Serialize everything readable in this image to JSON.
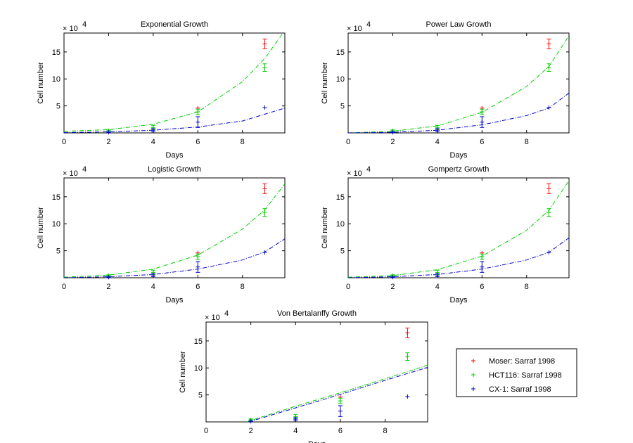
{
  "chart_data": [
    {
      "type": "scatter",
      "title": "Exponential Growth",
      "xlabel": "Days",
      "ylabel": "Cell number",
      "y_exponent_label": "× 10",
      "y_exponent_power": "4",
      "xlim": [
        0,
        9.9
      ],
      "ylim": [
        0,
        18.5
      ],
      "xticks": [
        0,
        2,
        4,
        6,
        8
      ],
      "yticks": [
        5,
        10,
        15
      ],
      "series": [
        {
          "name": "Moser: Sarraf 1998",
          "color": "#ff0000",
          "x": [
            6,
            9
          ],
          "y": [
            4.6,
            16.5
          ],
          "err": [
            0,
            0.9
          ]
        },
        {
          "name": "HCT116: Sarraf 1998",
          "color": "#00cc00",
          "x": [
            2,
            4,
            6,
            9
          ],
          "y": [
            0.4,
            1.0,
            3.9,
            12.1
          ],
          "err": [
            0.15,
            0.4,
            0.5,
            0.7
          ]
        },
        {
          "name": "CX-1: Sarraf 1998",
          "color": "#0000cc",
          "x": [
            2,
            4,
            6,
            9
          ],
          "y": [
            0.1,
            0.5,
            2.0,
            4.7
          ],
          "err": [
            0.05,
            0.3,
            1.0,
            0
          ]
        }
      ],
      "fits": [
        {
          "color": "#00cc00",
          "x": [
            0,
            2,
            4,
            6,
            8,
            9,
            9.9
          ],
          "y": [
            0.3,
            0.6,
            1.6,
            3.9,
            9.5,
            13.8,
            19.0
          ]
        },
        {
          "color": "#0000cc",
          "x": [
            0,
            2,
            4,
            6,
            8,
            9.9
          ],
          "y": [
            0.05,
            0.2,
            0.5,
            1.1,
            2.2,
            4.6
          ]
        }
      ]
    },
    {
      "type": "scatter",
      "title": "Power Law Growth",
      "xlabel": "Days",
      "ylabel": "Cell number",
      "y_exponent_label": "× 10",
      "y_exponent_power": "4",
      "xlim": [
        0,
        9.9
      ],
      "ylim": [
        0,
        18.5
      ],
      "xticks": [
        0,
        2,
        4,
        6,
        8
      ],
      "yticks": [
        5,
        10,
        15
      ],
      "series": [
        {
          "name": "Moser: Sarraf 1998",
          "color": "#ff0000",
          "x": [
            6,
            9
          ],
          "y": [
            4.6,
            16.5
          ],
          "err": [
            0,
            0.9
          ]
        },
        {
          "name": "HCT116: Sarraf 1998",
          "color": "#00cc00",
          "x": [
            2,
            4,
            6,
            9
          ],
          "y": [
            0.4,
            1.0,
            3.9,
            12.1
          ],
          "err": [
            0.15,
            0.4,
            0.5,
            0.7
          ]
        },
        {
          "name": "CX-1: Sarraf 1998",
          "color": "#0000cc",
          "x": [
            2,
            4,
            6,
            9
          ],
          "y": [
            0.1,
            0.5,
            2.0,
            4.7
          ],
          "err": [
            0.05,
            0.3,
            1.0,
            0
          ]
        }
      ],
      "fits": [
        {
          "color": "#00cc00",
          "x": [
            0,
            2,
            4,
            6,
            8,
            9,
            9.9
          ],
          "y": [
            0.0,
            0.3,
            1.3,
            3.8,
            8.6,
            12.3,
            18.0
          ]
        },
        {
          "color": "#0000cc",
          "x": [
            0,
            2,
            4,
            6,
            8,
            9,
            9.9
          ],
          "y": [
            0.0,
            0.1,
            0.5,
            1.5,
            3.2,
            4.6,
            7.4
          ]
        }
      ]
    },
    {
      "type": "scatter",
      "title": "Logistic Growth",
      "xlabel": "Days",
      "ylabel": "Cell number",
      "y_exponent_label": "× 10",
      "y_exponent_power": "4",
      "xlim": [
        0,
        9.9
      ],
      "ylim": [
        0,
        18.5
      ],
      "xticks": [
        0,
        2,
        4,
        6,
        8
      ],
      "yticks": [
        5,
        10,
        15
      ],
      "series": [
        {
          "name": "Moser: Sarraf 1998",
          "color": "#ff0000",
          "x": [
            6,
            9
          ],
          "y": [
            4.6,
            16.5
          ],
          "err": [
            0,
            0.9
          ]
        },
        {
          "name": "HCT116: Sarraf 1998",
          "color": "#00cc00",
          "x": [
            2,
            4,
            6,
            9
          ],
          "y": [
            0.4,
            1.0,
            3.9,
            12.1
          ],
          "err": [
            0.15,
            0.4,
            0.5,
            0.7
          ]
        },
        {
          "name": "CX-1: Sarraf 1998",
          "color": "#0000cc",
          "x": [
            2,
            4,
            6,
            9
          ],
          "y": [
            0.1,
            0.5,
            2.0,
            4.7
          ],
          "err": [
            0.05,
            0.3,
            1.0,
            0
          ]
        }
      ],
      "fits": [
        {
          "color": "#00cc00",
          "x": [
            0,
            2,
            4,
            6,
            8,
            9,
            9.9
          ],
          "y": [
            0.1,
            0.5,
            1.6,
            4.2,
            9.0,
            12.6,
            17.4
          ]
        },
        {
          "color": "#0000cc",
          "x": [
            0,
            2,
            4,
            6,
            8,
            9,
            9.9
          ],
          "y": [
            0.0,
            0.2,
            0.6,
            1.6,
            3.3,
            4.8,
            7.2
          ]
        }
      ]
    },
    {
      "type": "scatter",
      "title": "Gompertz Growth",
      "xlabel": "Days",
      "ylabel": "Cell number",
      "y_exponent_label": "× 10",
      "y_exponent_power": "4",
      "xlim": [
        0,
        9.9
      ],
      "ylim": [
        0,
        18.5
      ],
      "xticks": [
        0,
        2,
        4,
        6,
        8
      ],
      "yticks": [
        5,
        10,
        15
      ],
      "series": [
        {
          "name": "Moser: Sarraf 1998",
          "color": "#ff0000",
          "x": [
            6,
            9
          ],
          "y": [
            4.6,
            16.5
          ],
          "err": [
            0,
            0.9
          ]
        },
        {
          "name": "HCT116: Sarraf 1998",
          "color": "#00cc00",
          "x": [
            2,
            4,
            6,
            9
          ],
          "y": [
            0.4,
            1.0,
            3.9,
            12.1
          ],
          "err": [
            0.15,
            0.4,
            0.5,
            0.7
          ]
        },
        {
          "name": "CX-1: Sarraf 1998",
          "color": "#0000cc",
          "x": [
            2,
            4,
            6,
            9
          ],
          "y": [
            0.1,
            0.5,
            2.0,
            4.7
          ],
          "err": [
            0.05,
            0.3,
            1.0,
            0
          ]
        }
      ],
      "fits": [
        {
          "color": "#00cc00",
          "x": [
            0,
            2,
            4,
            6,
            8,
            9,
            9.9
          ],
          "y": [
            0.1,
            0.4,
            1.5,
            4.0,
            8.8,
            12.5,
            18.0
          ]
        },
        {
          "color": "#0000cc",
          "x": [
            0,
            2,
            4,
            6,
            8,
            9,
            9.9
          ],
          "y": [
            0.0,
            0.2,
            0.6,
            1.6,
            3.3,
            4.7,
            7.4
          ]
        }
      ]
    },
    {
      "type": "scatter",
      "title": "Von Bertalanffy Growth",
      "xlabel": "Days",
      "ylabel": "Cell number",
      "y_exponent_label": "× 10",
      "y_exponent_power": "4",
      "xlim": [
        0,
        9.9
      ],
      "ylim": [
        0,
        18.5
      ],
      "xticks": [
        0,
        2,
        4,
        6,
        8
      ],
      "yticks": [
        5,
        10,
        15
      ],
      "series": [
        {
          "name": "Moser: Sarraf 1998",
          "color": "#ff0000",
          "x": [
            6,
            9
          ],
          "y": [
            4.6,
            16.5
          ],
          "err": [
            0,
            0.9
          ]
        },
        {
          "name": "HCT116: Sarraf 1998",
          "color": "#00cc00",
          "x": [
            2,
            4,
            6,
            9
          ],
          "y": [
            0.4,
            1.0,
            3.9,
            12.1
          ],
          "err": [
            0.15,
            0.4,
            0.5,
            0.7
          ]
        },
        {
          "name": "CX-1: Sarraf 1998",
          "color": "#0000cc",
          "x": [
            2,
            4,
            6,
            9
          ],
          "y": [
            0.1,
            0.5,
            2.0,
            4.7
          ],
          "err": [
            0.05,
            0.3,
            1.0,
            0
          ]
        }
      ],
      "fits": [
        {
          "color": "#00cc00",
          "x": [
            1.8,
            4,
            6,
            8,
            9.9
          ],
          "y": [
            0.0,
            2.9,
            5.4,
            8.0,
            10.5
          ]
        },
        {
          "color": "#0000cc",
          "x": [
            1.9,
            4,
            6,
            8,
            9.9
          ],
          "y": [
            0.0,
            2.6,
            5.1,
            7.7,
            10.1
          ]
        }
      ]
    }
  ],
  "legend": {
    "placement": "right of bottom plot",
    "entries": [
      {
        "label": "Moser: Sarraf 1998",
        "color": "#ff0000"
      },
      {
        "label": "HCT116: Sarraf 1998",
        "color": "#00cc00"
      },
      {
        "label": "CX-1: Sarraf 1998",
        "color": "#0000cc"
      }
    ]
  }
}
